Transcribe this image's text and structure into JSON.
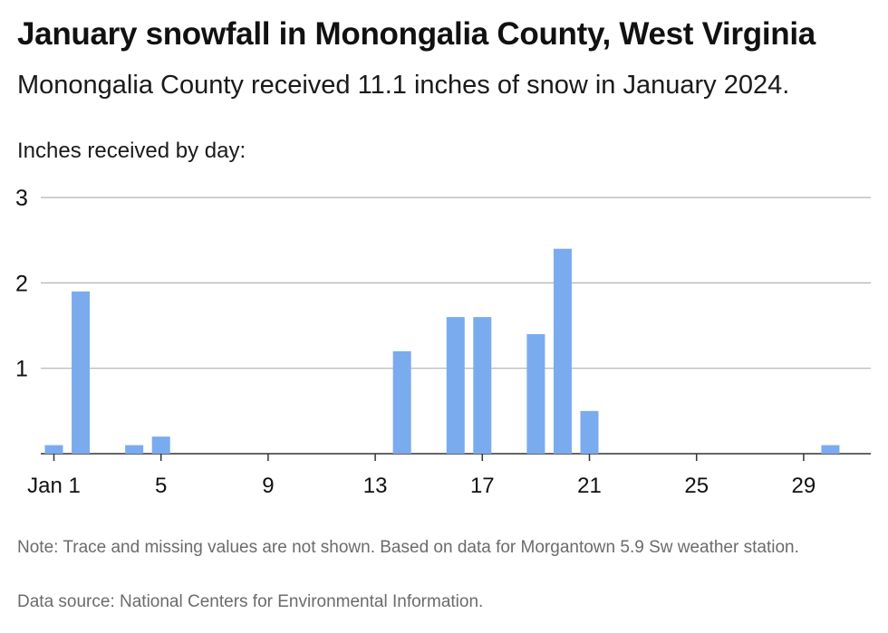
{
  "title": "January snowfall in Monongalia County, West Virginia",
  "subtitle": "Monongalia County received 11.1 inches of snow in January 2024.",
  "note": "Note: Trace and missing values are not shown. Based on data for Morgantown 5.9 Sw weather station.",
  "source": "Data source: National Centers for Environmental Information.",
  "colors": {
    "bar": "#7aabee",
    "grid": "#b3b3b3",
    "axis": "#333333"
  },
  "chart_data": {
    "type": "bar",
    "ylabel": "Inches received by day:",
    "xlabel": "",
    "ylim": [
      0,
      3
    ],
    "yticks": [
      1,
      2,
      3
    ],
    "xticks": [
      {
        "day": 1,
        "label": "Jan 1"
      },
      {
        "day": 5,
        "label": "5"
      },
      {
        "day": 9,
        "label": "9"
      },
      {
        "day": 13,
        "label": "13"
      },
      {
        "day": 17,
        "label": "17"
      },
      {
        "day": 21,
        "label": "21"
      },
      {
        "day": 25,
        "label": "25"
      },
      {
        "day": 29,
        "label": "29"
      }
    ],
    "grid": true,
    "x": [
      1,
      2,
      4,
      5,
      14,
      16,
      17,
      19,
      20,
      21,
      30
    ],
    "values": [
      0.1,
      1.9,
      0.1,
      0.2,
      1.2,
      1.6,
      1.6,
      1.4,
      2.4,
      0.5,
      0.1
    ]
  }
}
